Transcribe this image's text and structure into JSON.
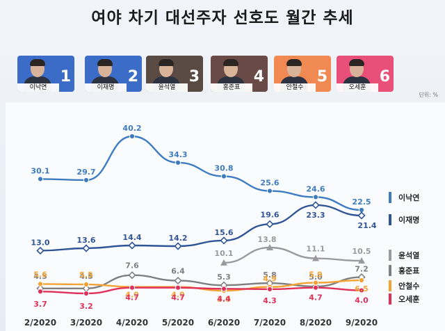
{
  "title": "여야 차기 대선주자 선호도 월간 추세",
  "unit": "단위: %",
  "candidates": [
    {
      "name": "이낙연",
      "rank": "1",
      "color": "#3a6cc8"
    },
    {
      "name": "이재명",
      "rank": "2",
      "color": "#3a6cc8"
    },
    {
      "name": "윤석열",
      "rank": "3",
      "color": "#5a4a44"
    },
    {
      "name": "홍준표",
      "rank": "4",
      "color": "#6a4a46"
    },
    {
      "name": "안철수",
      "rank": "5",
      "color": "#f08a52"
    },
    {
      "name": "오세훈",
      "rank": "6",
      "color": "#e8507a"
    }
  ],
  "chart_data": {
    "type": "line",
    "title": "여야 차기 대선주자 선호도 월간 추세",
    "x": [
      "2/2020",
      "3/2020",
      "4/2020",
      "5/2020",
      "6/2020",
      "7/2020",
      "8/2020",
      "9/2020"
    ],
    "ylabel": "단위: %",
    "series": [
      {
        "name": "이낙연",
        "color": "#3d7cc0",
        "marker": "circle",
        "values": [
          30.1,
          29.7,
          40.2,
          34.3,
          30.8,
          25.6,
          24.6,
          22.5
        ],
        "labels": [
          "30.1",
          "29.7",
          "40.2",
          "34.3",
          "30.8",
          "25.6",
          "24.6",
          "22.5"
        ]
      },
      {
        "name": "이재명",
        "color": "#2f5597",
        "marker": "diamond",
        "values": [
          13.0,
          13.6,
          14.4,
          14.2,
          15.6,
          19.6,
          23.3,
          21.4
        ],
        "labels": [
          "13.0",
          "13.6",
          "14.4",
          "14.2",
          "15.6",
          "19.6",
          "23.3",
          "21.4"
        ]
      },
      {
        "name": "윤석열",
        "color": "#9a9a9a",
        "marker": "triangle",
        "values": [
          null,
          null,
          null,
          null,
          10.1,
          13.8,
          11.1,
          10.5
        ],
        "labels": [
          "",
          "",
          "",
          "",
          "10.1",
          "13.8",
          "11.1",
          "10.5"
        ]
      },
      {
        "name": "홍준표",
        "color": "#7f7f7f",
        "marker": "diamond",
        "values": [
          4.5,
          4.5,
          7.6,
          6.4,
          5.3,
          5.8,
          5.0,
          7.2
        ],
        "labels": [
          "4.5",
          "4.5",
          "7.6",
          "6.4",
          "5.3",
          "5.8",
          "5.0",
          "7.2"
        ]
      },
      {
        "name": "안철수",
        "color": "#f4a233",
        "marker": "circle",
        "values": [
          5.6,
          5.5,
          4.9,
          4.9,
          3.9,
          4.9,
          5.9,
          6.5
        ],
        "labels": [
          "5.6",
          "5.5",
          "4.9",
          "4.9",
          "3.9",
          "4.9",
          "5.9",
          "6.5"
        ]
      },
      {
        "name": "오세훈",
        "color": "#e0305a",
        "marker": "circle",
        "values": [
          3.7,
          3.2,
          4.7,
          4.7,
          4.4,
          4.3,
          4.7,
          4.0
        ],
        "labels": [
          "3.7",
          "3.2",
          "4.7",
          "4.7",
          "4.4",
          "4.3",
          "4.7",
          "4.0"
        ]
      }
    ]
  }
}
